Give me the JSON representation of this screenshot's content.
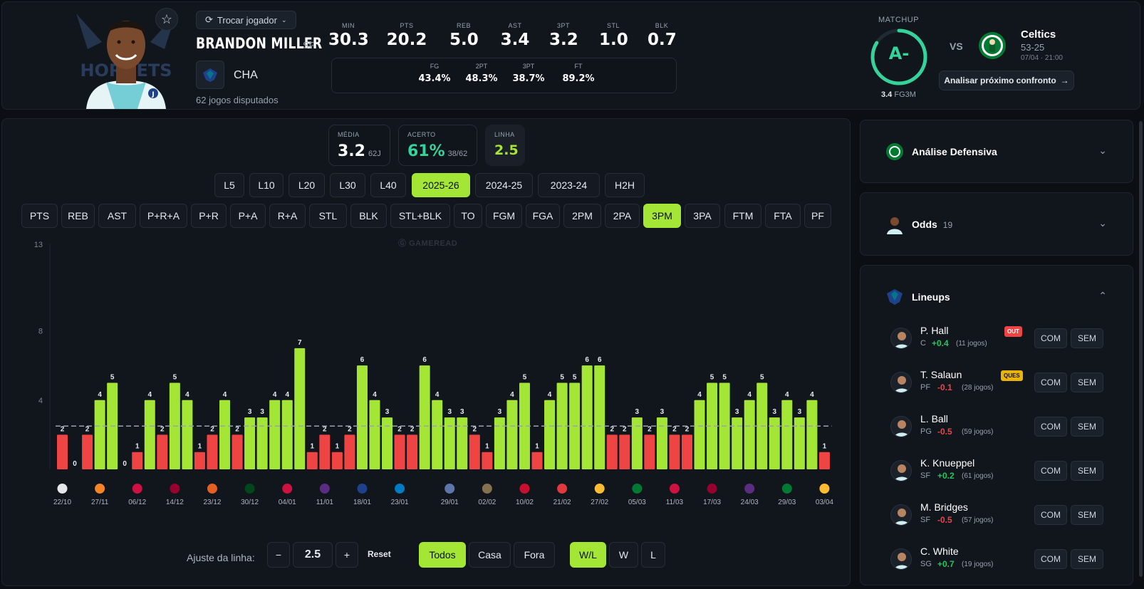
{
  "player": {
    "swap_label": "Trocar jogador",
    "name": "BRANDON MILLER",
    "position": "SF",
    "team_abbr": "CHA",
    "games_played": "62 jogos disputados",
    "jersey_number": "J",
    "team_logo_text": "HORNETS"
  },
  "season_stats": [
    {
      "label": "MIN",
      "value": "30.3"
    },
    {
      "label": "PTS",
      "value": "20.2"
    },
    {
      "label": "REB",
      "value": "5.0"
    },
    {
      "label": "AST",
      "value": "3.4"
    },
    {
      "label": "3PT",
      "value": "3.2"
    },
    {
      "label": "STL",
      "value": "1.0"
    },
    {
      "label": "BLK",
      "value": "0.7"
    }
  ],
  "shooting": [
    {
      "label": "FG",
      "value": "43.4%"
    },
    {
      "label": "2PT",
      "value": "48.3%"
    },
    {
      "label": "3PT",
      "value": "38.7%"
    },
    {
      "label": "FT",
      "value": "89.2%"
    }
  ],
  "matchup": {
    "label": "MATCHUP",
    "grade": "A-",
    "stat_value": "3.4",
    "stat_label": "FG3M",
    "vs": "VS",
    "opponent": "Celtics",
    "record": "53-25",
    "date": "07/04 · 21:00",
    "analyze_label": "Analisar próximo confronto",
    "colors": {
      "grade": "#34d399",
      "ring_track": "#1f2a33"
    }
  },
  "summary": {
    "media_label": "MÉDIA",
    "media_value": "3.2",
    "media_sub": "62J",
    "acerto_label": "ACERTO",
    "acerto_value": "61%",
    "acerto_sub": "38/62",
    "linha_label": "LINHA",
    "linha_value": "2.5"
  },
  "periods": [
    "L5",
    "L10",
    "L20",
    "L30",
    "L40",
    "2025-26",
    "2024-25",
    "2023-24",
    "H2H"
  ],
  "period_active": "2025-26",
  "stat_types": [
    "PTS",
    "REB",
    "AST",
    "P+R+A",
    "P+R",
    "P+A",
    "R+A",
    "STL",
    "BLK",
    "STL+BLK",
    "TO",
    "FGM",
    "FGA",
    "2PM",
    "2PA",
    "3PM",
    "3PA",
    "FTM",
    "FTA",
    "PF"
  ],
  "stat_active": "3PM",
  "watermark": "GAMEREAD",
  "chart_data": {
    "type": "bar",
    "title": "",
    "xlabel": "",
    "ylabel": "",
    "ylim": [
      0,
      13
    ],
    "yticks": [
      4,
      8,
      13
    ],
    "line": 2.5,
    "values": [
      2,
      0,
      2,
      4,
      5,
      0,
      1,
      4,
      2,
      5,
      4,
      1,
      2,
      4,
      2,
      3,
      3,
      4,
      4,
      7,
      1,
      2,
      1,
      2,
      6,
      4,
      3,
      2,
      2,
      6,
      4,
      3,
      3,
      2,
      1,
      3,
      4,
      5,
      1,
      4,
      5,
      5,
      6,
      6,
      2,
      2,
      3,
      2,
      3,
      2,
      2,
      4,
      5,
      5,
      3,
      4,
      5,
      3,
      4,
      3,
      4,
      1
    ],
    "x_labels": [
      "22/10",
      "27/11",
      "06/12",
      "14/12",
      "23/12",
      "30/12",
      "04/01",
      "11/01",
      "18/01",
      "23/01",
      "29/01",
      "02/02",
      "10/02",
      "21/02",
      "27/02",
      "05/03",
      "11/03",
      "17/03",
      "24/03",
      "29/03",
      "03/04"
    ],
    "opponent_icons": [
      "nets-icon",
      "knicks-icon",
      "raptors-icon",
      "heat-icon",
      "suns-icon",
      "bucks-icon",
      "bulls-icon",
      "jazz-icon",
      "warriors-icon",
      "thunder-icon",
      "grizzlies-icon",
      "pelicans-icon",
      "pistons-icon",
      "blazers-icon",
      "pacers-icon",
      "celtics-icon",
      "raptors-icon",
      "heat-icon",
      "kings-icon",
      "celtics-icon",
      "pacers-icon"
    ],
    "opponent_icon_colors": [
      "#e5e7eb",
      "#f58426",
      "#ce1141",
      "#98002e",
      "#e56020",
      "#00471b",
      "#ce1141",
      "#5b2c83",
      "#1d428a",
      "#007ac1",
      "#5d76a9",
      "#85714d",
      "#c8102e",
      "#e03a3e",
      "#fdbb30",
      "#007a33",
      "#ce1141",
      "#98002e",
      "#5a2d81",
      "#007a33",
      "#fdbb30"
    ],
    "colors": {
      "hit": "#a3e635",
      "miss": "#ef4444",
      "line": "#9ca3af"
    }
  },
  "controls": {
    "line_adjust_label": "Ajuste da linha:",
    "minus": "−",
    "line_value": "2.5",
    "plus": "+",
    "reset": "Reset",
    "venue": [
      "Todos",
      "Casa",
      "Fora"
    ],
    "venue_active": "Todos",
    "result": [
      "W/L",
      "W",
      "L"
    ],
    "result_active": "W/L"
  },
  "side": {
    "defense_title": "Análise Defensiva",
    "odds_title": "Odds",
    "odds_count": "19",
    "lineups_title": "Lineups",
    "com_label": "COM",
    "sem_label": "SEM",
    "lineups": [
      {
        "name": "P. Hall",
        "pos": "C",
        "impact": "+0.4",
        "games": "(11 jogos)",
        "badge": "OUT"
      },
      {
        "name": "T. Salaun",
        "pos": "PF",
        "impact": "-0.1",
        "games": "(28 jogos)",
        "badge": "QUES"
      },
      {
        "name": "L. Ball",
        "pos": "PG",
        "impact": "-0.5",
        "games": "(59 jogos)",
        "badge": ""
      },
      {
        "name": "K. Knueppel",
        "pos": "SF",
        "impact": "+0.2",
        "games": "(61 jogos)",
        "badge": ""
      },
      {
        "name": "M. Bridges",
        "pos": "SF",
        "impact": "-0.5",
        "games": "(57 jogos)",
        "badge": ""
      },
      {
        "name": "C. White",
        "pos": "SG",
        "impact": "+0.7",
        "games": "(19 jogos)",
        "badge": ""
      }
    ],
    "colors": {
      "pos": "#22c55e",
      "neg": "#ef4444",
      "out": "#ef4444",
      "ques": "#eab308"
    }
  }
}
